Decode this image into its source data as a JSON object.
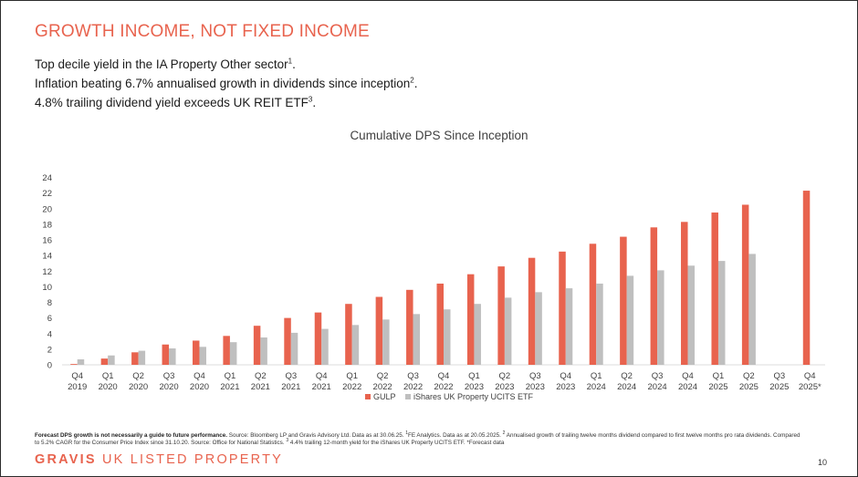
{
  "header": {
    "title": "GROWTH INCOME, NOT FIXED INCOME",
    "bullets": [
      {
        "text": "Top decile yield in the IA Property Other sector",
        "sup": "1",
        "end": "."
      },
      {
        "text": "Inflation beating 6.7% annualised growth in dividends since inception",
        "sup": "2",
        "end": "."
      },
      {
        "text": "4.8% trailing dividend yield exceeds UK REIT ETF",
        "sup": "3",
        "end": "."
      }
    ]
  },
  "chart_data": {
    "type": "bar",
    "title": "Cumulative DPS Since Inception",
    "xlabel": "",
    "ylabel": "",
    "ylim": [
      0,
      24
    ],
    "yticks": [
      0,
      2,
      4,
      6,
      8,
      10,
      12,
      14,
      16,
      18,
      20,
      22,
      24
    ],
    "grid": false,
    "legend_position": "bottom",
    "categories": [
      [
        "Q4",
        "2019"
      ],
      [
        "Q1",
        "2020"
      ],
      [
        "Q2",
        "2020"
      ],
      [
        "Q3",
        "2020"
      ],
      [
        "Q4",
        "2020"
      ],
      [
        "Q1",
        "2021"
      ],
      [
        "Q2",
        "2021"
      ],
      [
        "Q3",
        "2021"
      ],
      [
        "Q4",
        "2021"
      ],
      [
        "Q1",
        "2022"
      ],
      [
        "Q2",
        "2022"
      ],
      [
        "Q3",
        "2022"
      ],
      [
        "Q4",
        "2022"
      ],
      [
        "Q1",
        "2023"
      ],
      [
        "Q2",
        "2023"
      ],
      [
        "Q3",
        "2023"
      ],
      [
        "Q4",
        "2023"
      ],
      [
        "Q1",
        "2024"
      ],
      [
        "Q2",
        "2024"
      ],
      [
        "Q3",
        "2024"
      ],
      [
        "Q4",
        "2024"
      ],
      [
        "Q1",
        "2025"
      ],
      [
        "Q2",
        "2025"
      ],
      [
        "Q3",
        "2025"
      ],
      [
        "Q4",
        "2025*"
      ]
    ],
    "series": [
      {
        "name": "GULP",
        "color": "#e8634e",
        "values": [
          0.1,
          0.8,
          1.6,
          2.6,
          3.1,
          3.7,
          5.0,
          6.0,
          6.7,
          7.8,
          8.7,
          9.6,
          10.4,
          11.6,
          12.6,
          13.7,
          14.5,
          15.5,
          16.4,
          17.6,
          18.3,
          19.5,
          20.5,
          null,
          22.3
        ]
      },
      {
        "name": "iShares UK Property UCITS ETF",
        "color": "#bfbfbf",
        "values": [
          0.7,
          1.2,
          1.8,
          2.1,
          2.3,
          2.9,
          3.5,
          4.1,
          4.6,
          5.1,
          5.8,
          6.5,
          7.1,
          7.8,
          8.6,
          9.3,
          9.8,
          10.4,
          11.4,
          12.1,
          12.7,
          13.3,
          14.2,
          null,
          null
        ]
      }
    ]
  },
  "footnote": {
    "bold": "Forecast DPS growth is not necessarily a guide to future performance.",
    "p1": " Source: Bloomberg LP and Gravis Advisory Ltd. Data as at 30.06.25. ",
    "s1": "1",
    "p2": "FE Analytics. Data as at 20.05.2025. ",
    "s2": "2",
    "p3": " Annualised growth of trailing twelve months dividend compared to first twelve months pro rata dividends. Compared to 5.2% CAGR for the Consumer Price Index since 31.10.20. Source: Office for National Statistics. ",
    "s3": "3",
    "p4": " 4.4% trailing 12-month yield for the iShares UK Property UCITS ETF. *Forecast data"
  },
  "brand": {
    "bold": "GRAVIS",
    "rest": " UK LISTED PROPERTY"
  },
  "page_number": "10"
}
